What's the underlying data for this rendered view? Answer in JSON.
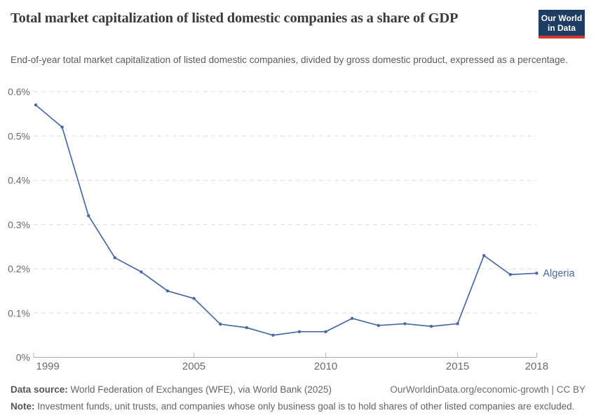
{
  "header": {
    "title": "Total market capitalization of listed domestic companies as a share of GDP",
    "subtitle": "End-of-year total market capitalization of listed domestic companies, divided by gross domestic product, expressed as a percentage.",
    "logo": {
      "line1": "Our World",
      "line2": "in Data",
      "bg_color": "#1d3d63",
      "bar_color": "#d7382e"
    }
  },
  "chart_data": {
    "type": "line",
    "title": "Total market capitalization of listed domestic companies as a share of GDP",
    "x": [
      1999,
      2000,
      2001,
      2002,
      2003,
      2004,
      2005,
      2006,
      2007,
      2008,
      2009,
      2010,
      2011,
      2012,
      2013,
      2014,
      2015,
      2016,
      2017,
      2018
    ],
    "series": [
      {
        "name": "Algeria",
        "color": "#4a69a2",
        "values": [
          0.57,
          0.52,
          0.32,
          0.225,
          0.193,
          0.15,
          0.133,
          0.075,
          0.067,
          0.05,
          0.058,
          0.058,
          0.088,
          0.072,
          0.076,
          0.07,
          0.076,
          0.23,
          0.187,
          0.19
        ]
      }
    ],
    "unit": "%",
    "xlabel": "",
    "ylabel": "",
    "ylim": [
      0,
      0.6
    ],
    "yticks": [
      0,
      0.1,
      0.2,
      0.3,
      0.4,
      0.5,
      0.6
    ],
    "ytick_labels": [
      "0%",
      "0.1%",
      "0.2%",
      "0.3%",
      "0.4%",
      "0.5%",
      "0.6%"
    ],
    "xticks": [
      1999,
      2005,
      2010,
      2015,
      2018
    ],
    "grid": "horizontal-dashed",
    "legend": "end-of-line-label"
  },
  "footer": {
    "source_label": "Data source:",
    "source_text": " World Federation of Exchanges (WFE), via World Bank (2025)",
    "link": "OurWorldinData.org/economic-growth | CC BY",
    "note_label": "Note:",
    "note_text": " Investment funds, unit trusts, and companies whose only business goal is to hold shares of other listed companies are excluded."
  }
}
